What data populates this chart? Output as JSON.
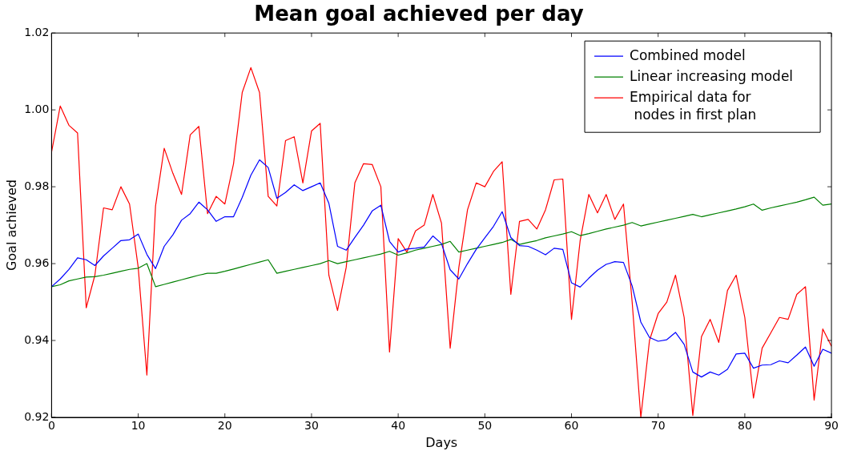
{
  "chart_data": {
    "type": "line",
    "title": "Mean goal achieved per day",
    "xlabel": "Days",
    "ylabel": "Goal achieved",
    "x": [
      0,
      1,
      2,
      3,
      4,
      5,
      6,
      7,
      8,
      9,
      10,
      11,
      12,
      13,
      14,
      15,
      16,
      17,
      18,
      19,
      20,
      21,
      22,
      23,
      24,
      25,
      26,
      27,
      28,
      29,
      30,
      31,
      32,
      33,
      34,
      35,
      36,
      37,
      38,
      39,
      40,
      41,
      42,
      43,
      44,
      45,
      46,
      47,
      48,
      49,
      50,
      51,
      52,
      53,
      54,
      55,
      56,
      57,
      58,
      59,
      60,
      61,
      62,
      63,
      64,
      65,
      66,
      67,
      68,
      69,
      70,
      71,
      72,
      73,
      74,
      75,
      76,
      77,
      78,
      79,
      80,
      81,
      82,
      83,
      84,
      85,
      86,
      87,
      88,
      89,
      90
    ],
    "series": [
      {
        "name": "Combined model",
        "color": "#0000ff",
        "values": [
          0.954,
          0.956,
          0.9585,
          0.9615,
          0.961,
          0.9595,
          0.962,
          0.964,
          0.966,
          0.9662,
          0.9677,
          0.9624,
          0.9587,
          0.9645,
          0.9675,
          0.9713,
          0.973,
          0.976,
          0.974,
          0.971,
          0.9722,
          0.9722,
          0.9772,
          0.983,
          0.987,
          0.985,
          0.977,
          0.9785,
          0.9805,
          0.979,
          0.98,
          0.981,
          0.9757,
          0.9645,
          0.9635,
          0.9668,
          0.97,
          0.9737,
          0.9752,
          0.9658,
          0.963,
          0.9638,
          0.964,
          0.9643,
          0.9672,
          0.9652,
          0.9584,
          0.956,
          0.96,
          0.9637,
          0.9667,
          0.9697,
          0.9735,
          0.9668,
          0.9647,
          0.9645,
          0.9635,
          0.9623,
          0.964,
          0.9637,
          0.955,
          0.9539,
          0.9562,
          0.9583,
          0.9598,
          0.9605,
          0.9603,
          0.9542,
          0.9448,
          0.9408,
          0.9398,
          0.9402,
          0.9421,
          0.939,
          0.9318,
          0.9305,
          0.9318,
          0.931,
          0.9325,
          0.9365,
          0.9367,
          0.9328,
          0.9336,
          0.9337,
          0.9347,
          0.9342,
          0.9362,
          0.9383,
          0.9333,
          0.9377,
          0.9367
        ]
      },
      {
        "name": "Linear increasing model",
        "color": "#008000",
        "values": [
          0.954,
          0.9545,
          0.9555,
          0.956,
          0.9565,
          0.9566,
          0.957,
          0.9575,
          0.958,
          0.9585,
          0.9588,
          0.96,
          0.954,
          0.9546,
          0.9552,
          0.9558,
          0.9564,
          0.957,
          0.9575,
          0.9575,
          0.958,
          0.9586,
          0.9592,
          0.9598,
          0.9604,
          0.961,
          0.9575,
          0.958,
          0.9585,
          0.959,
          0.9595,
          0.96,
          0.9608,
          0.96,
          0.9605,
          0.961,
          0.9615,
          0.962,
          0.9625,
          0.9632,
          0.9622,
          0.9628,
          0.9635,
          0.964,
          0.9645,
          0.965,
          0.9658,
          0.963,
          0.9635,
          0.964,
          0.9645,
          0.965,
          0.9655,
          0.9663,
          0.965,
          0.9655,
          0.966,
          0.9667,
          0.9672,
          0.9677,
          0.9683,
          0.9673,
          0.9678,
          0.9684,
          0.969,
          0.9695,
          0.97,
          0.9707,
          0.9698,
          0.9703,
          0.9708,
          0.9713,
          0.9718,
          0.9723,
          0.9728,
          0.9722,
          0.9727,
          0.9732,
          0.9737,
          0.9742,
          0.9748,
          0.9755,
          0.9739,
          0.9745,
          0.975,
          0.9755,
          0.976,
          0.9766,
          0.9773,
          0.9752,
          0.9755
        ]
      },
      {
        "name": "Empirical data for\n nodes in first plan",
        "color": "#ff0000",
        "values": [
          0.989,
          1.001,
          0.996,
          0.994,
          0.9485,
          0.957,
          0.9745,
          0.974,
          0.98,
          0.9755,
          0.959,
          0.931,
          0.975,
          0.99,
          0.9835,
          0.978,
          0.9935,
          0.9957,
          0.973,
          0.9775,
          0.9755,
          0.986,
          1.0045,
          1.011,
          1.0045,
          0.9775,
          0.975,
          0.992,
          0.993,
          0.981,
          0.9945,
          0.9965,
          0.957,
          0.9478,
          0.959,
          0.981,
          0.986,
          0.9858,
          0.98,
          0.937,
          0.9665,
          0.963,
          0.9685,
          0.97,
          0.978,
          0.9705,
          0.938,
          0.959,
          0.974,
          0.981,
          0.98,
          0.984,
          0.9865,
          0.952,
          0.971,
          0.9715,
          0.969,
          0.974,
          0.9818,
          0.982,
          0.9455,
          0.966,
          0.978,
          0.9732,
          0.978,
          0.9715,
          0.9755,
          0.95,
          0.92,
          0.94,
          0.947,
          0.95,
          0.957,
          0.946,
          0.9205,
          0.941,
          0.9455,
          0.9395,
          0.953,
          0.957,
          0.946,
          0.925,
          0.938,
          0.942,
          0.946,
          0.9455,
          0.952,
          0.954,
          0.9245,
          0.943,
          0.9385
        ]
      }
    ],
    "xlim": [
      0,
      90
    ],
    "xticks": [
      0,
      10,
      20,
      30,
      40,
      50,
      60,
      70,
      80,
      90
    ],
    "ylim": [
      0.92,
      1.02
    ],
    "yticks": [
      0.92,
      0.94,
      0.96,
      0.98,
      {
        "value": 1,
        "label": "1.00"
      },
      1.02
    ],
    "grid": false,
    "legend": "top right",
    "marker": "none",
    "line_style": "solid"
  }
}
